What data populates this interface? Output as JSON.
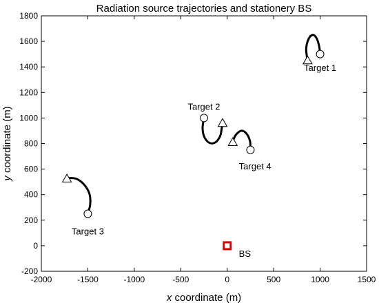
{
  "chart_data": {
    "type": "line",
    "title": "Radiation source trajectories and stationery BS",
    "xlabel_var": "x",
    "xlabel_rest": " coordinate (m)",
    "ylabel_var": "y",
    "ylabel_rest": " coordinate (m)",
    "xlim": [
      -2000,
      1500
    ],
    "ylim": [
      -200,
      1800
    ],
    "xticks": [
      -2000,
      -1500,
      -1000,
      -500,
      0,
      500,
      1000,
      1500
    ],
    "yticks": [
      -200,
      0,
      200,
      400,
      600,
      800,
      1000,
      1200,
      1400,
      1600,
      1800
    ],
    "grid": false,
    "colors": {
      "trajectory": "#000000",
      "bs": "#e00000",
      "axis": "#000000"
    },
    "series": [
      {
        "label": "Target 1",
        "start": [
          1000,
          1500
        ],
        "end": [
          865,
          1450
        ],
        "path": [
          [
            1000,
            1500
          ],
          [
            990,
            1560
          ],
          [
            965,
            1620
          ],
          [
            930,
            1650
          ],
          [
            895,
            1640
          ],
          [
            865,
            1600
          ],
          [
            850,
            1545
          ],
          [
            855,
            1495
          ],
          [
            865,
            1450
          ]
        ],
        "label_pos": [
          1000,
          1390
        ]
      },
      {
        "label": "Target 2",
        "start": [
          -250,
          1000
        ],
        "end": [
          -50,
          960
        ],
        "path": [
          [
            -250,
            1000
          ],
          [
            -265,
            920
          ],
          [
            -245,
            850
          ],
          [
            -190,
            805
          ],
          [
            -125,
            810
          ],
          [
            -75,
            860
          ],
          [
            -60,
            915
          ],
          [
            -50,
            960
          ]
        ],
        "label_pos": [
          -250,
          1085
        ]
      },
      {
        "label": "Target 3",
        "start": [
          -1500,
          250
        ],
        "end": [
          -1725,
          525
        ],
        "path": [
          [
            -1500,
            250
          ],
          [
            -1475,
            320
          ],
          [
            -1480,
            400
          ],
          [
            -1530,
            470
          ],
          [
            -1610,
            520
          ],
          [
            -1680,
            530
          ],
          [
            -1725,
            525
          ]
        ],
        "label_pos": [
          -1500,
          110
        ]
      },
      {
        "label": "Target 4",
        "start": [
          250,
          750
        ],
        "end": [
          60,
          810
        ],
        "path": [
          [
            250,
            750
          ],
          [
            245,
            820
          ],
          [
            205,
            880
          ],
          [
            150,
            900
          ],
          [
            95,
            870
          ],
          [
            70,
            835
          ],
          [
            60,
            810
          ]
        ],
        "label_pos": [
          300,
          620
        ]
      }
    ],
    "bs": {
      "label": "BS",
      "position": [
        0,
        0
      ],
      "label_pos": [
        190,
        -65
      ]
    }
  }
}
